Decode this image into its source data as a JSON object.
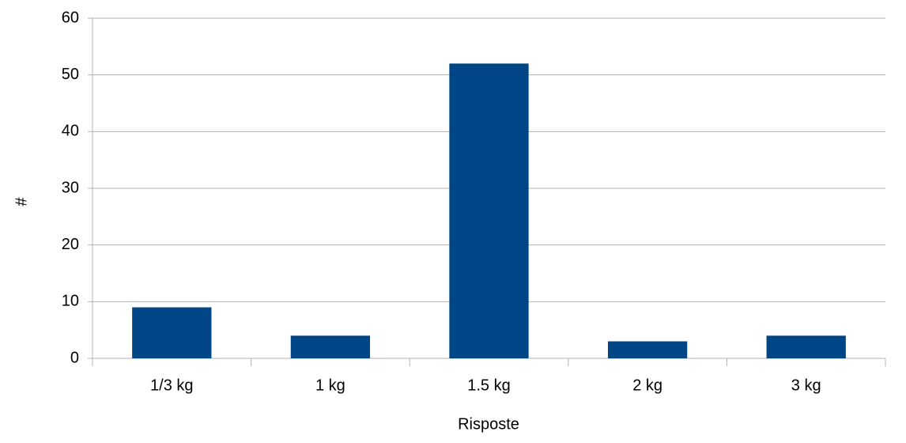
{
  "chart_data": {
    "type": "bar",
    "x_label": "Risposte",
    "y_label": "#",
    "categories": [
      "1/3 kg",
      "1 kg",
      "1.5 kg",
      "2 kg",
      "3 kg"
    ],
    "values": [
      9,
      4,
      52,
      3,
      4
    ],
    "color": "#004586",
    "ylim": [
      0,
      60
    ],
    "yticks": [
      0,
      10,
      20,
      30,
      40,
      50,
      60
    ],
    "grid": true
  }
}
